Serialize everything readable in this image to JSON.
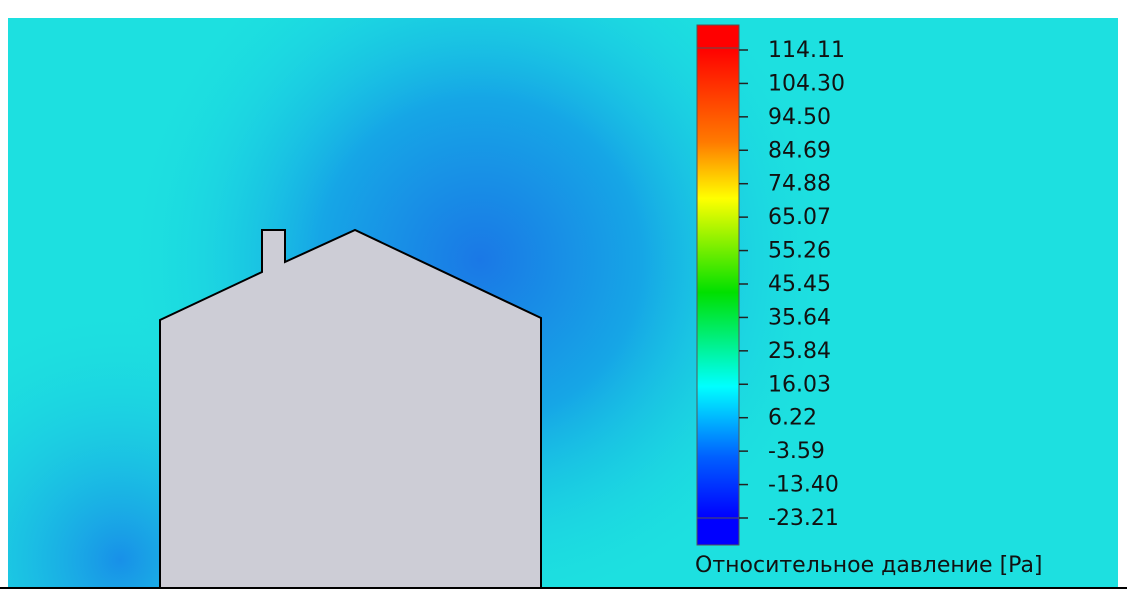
{
  "legend": {
    "title": "Относительное давление [Pa]",
    "range": [
      -23.21,
      114.11
    ],
    "ticks": [
      {
        "value": 114.11,
        "label": "114.11"
      },
      {
        "value": 104.3,
        "label": "104.30"
      },
      {
        "value": 94.5,
        "label": "94.50"
      },
      {
        "value": 84.69,
        "label": "84.69"
      },
      {
        "value": 74.88,
        "label": "74.88"
      },
      {
        "value": 65.07,
        "label": "65.07"
      },
      {
        "value": 55.26,
        "label": "55.26"
      },
      {
        "value": 45.45,
        "label": "45.45"
      },
      {
        "value": 35.64,
        "label": "35.64"
      },
      {
        "value": 25.84,
        "label": "25.84"
      },
      {
        "value": 16.03,
        "label": "16.03"
      },
      {
        "value": 6.22,
        "label": "6.22"
      },
      {
        "value": -3.59,
        "label": "-3.59"
      },
      {
        "value": -13.4,
        "label": "-13.40"
      },
      {
        "value": -23.21,
        "label": "-23.21"
      }
    ]
  }
}
